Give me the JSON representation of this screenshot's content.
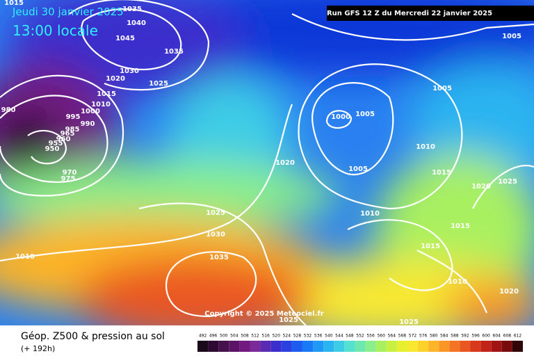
{
  "header": {
    "date": "Jeudi 30 janvier 2025",
    "time": "13:00 locale",
    "run": "Run GFS 12 Z du Mercredi 22 janvier 2025"
  },
  "copyright": "Copyright © 2025 Meteociel.fr",
  "footer": {
    "title": "Géop. Z500 & pression au sol",
    "lead": "(+ 192h)"
  },
  "isobars": [
    1015,
    1035,
    1040,
    1045,
    1035,
    1030,
    1020,
    1025,
    1015,
    1010,
    980,
    995,
    1000,
    990,
    985,
    965,
    960,
    955,
    950,
    970,
    975,
    1005,
    1005,
    1000,
    1005,
    1010,
    1020,
    1005,
    1015,
    1020,
    1025,
    1025,
    1030,
    1035,
    1010,
    1015,
    1015,
    1010,
    1010,
    1020,
    1025,
    1025
  ],
  "colorbar": {
    "labels": [
      492,
      496,
      500,
      504,
      508,
      512,
      516,
      520,
      524,
      528,
      532,
      536,
      540,
      544,
      548,
      552,
      556,
      560,
      564,
      568,
      572,
      576,
      580,
      584,
      588,
      592,
      596,
      600,
      604,
      608,
      612
    ],
    "colors": [
      "#1a0a1a",
      "#2e0a33",
      "#46104d",
      "#5c1466",
      "#721a80",
      "#7a2a99",
      "#5a2ab3",
      "#3a2ecc",
      "#2a40e0",
      "#1e5cf0",
      "#1a7af5",
      "#2098f5",
      "#2ab4f0",
      "#3ccce6",
      "#55e0d0",
      "#6ee8b0",
      "#8aee8a",
      "#a8f060",
      "#c8f040",
      "#e6f030",
      "#f8e830",
      "#fcd22a",
      "#fcb428",
      "#fa9626",
      "#f47624",
      "#ea5620",
      "#d8381c",
      "#c02418",
      "#a01414",
      "#780c0c",
      "#300606"
    ]
  }
}
